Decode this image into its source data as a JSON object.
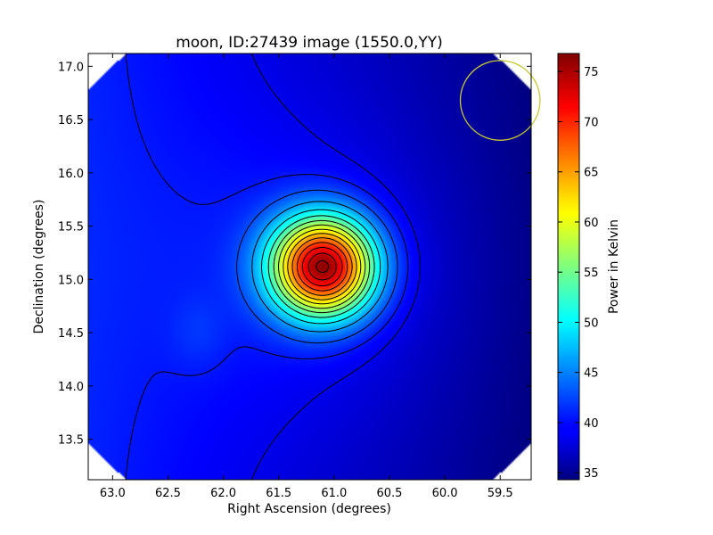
{
  "chart_data": {
    "type": "heatmap",
    "title": "moon, ID:27439 image (1550.0,YY)",
    "xlabel": "Right Ascension (degrees)",
    "ylabel": "Declination (degrees)",
    "colorbar_label": "Power in Kelvin",
    "xlim": [
      63.22,
      59.22
    ],
    "ylim": [
      13.12,
      17.12
    ],
    "x_inverted": true,
    "xticks": [
      63.0,
      62.5,
      62.0,
      61.5,
      61.0,
      60.5,
      60.0,
      59.5
    ],
    "xtick_labels": [
      "63.0",
      "62.5",
      "62.0",
      "61.5",
      "61.0",
      "60.5",
      "60.0",
      "59.5"
    ],
    "yticks": [
      13.5,
      14.0,
      14.5,
      15.0,
      15.5,
      16.0,
      16.5,
      17.0
    ],
    "ytick_labels": [
      "13.5",
      "14.0",
      "14.5",
      "15.0",
      "15.5",
      "16.0",
      "16.5",
      "17.0"
    ],
    "colorbar_range": [
      34.3,
      76.8
    ],
    "colorbar_ticks": [
      35,
      40,
      45,
      50,
      55,
      60,
      65,
      70,
      75
    ],
    "colorbar_tick_labels": [
      "35",
      "40",
      "45",
      "50",
      "55",
      "60",
      "65",
      "70",
      "75"
    ],
    "colormap": "jet",
    "source": {
      "ra": 61.1,
      "dec": 15.12,
      "peak": 76.5,
      "sigma_ra": 0.33,
      "sigma_dec": 0.33
    },
    "background": {
      "level_ra_63_2": 41.0,
      "level_ra_59_2": 34.3
    },
    "contour_levels": [
      38.8,
      40.5,
      42.9,
      46.1,
      49.4,
      52.4,
      55.1,
      57.7,
      60.4,
      63.0,
      65.7,
      68.4,
      71.0,
      73.5,
      75.5
    ],
    "contours_color": "#000000",
    "beam": {
      "ra": 59.5,
      "dec": 16.68,
      "radius_deg": 0.36,
      "color": "#c8c832"
    },
    "grid": false,
    "legend": "none"
  }
}
